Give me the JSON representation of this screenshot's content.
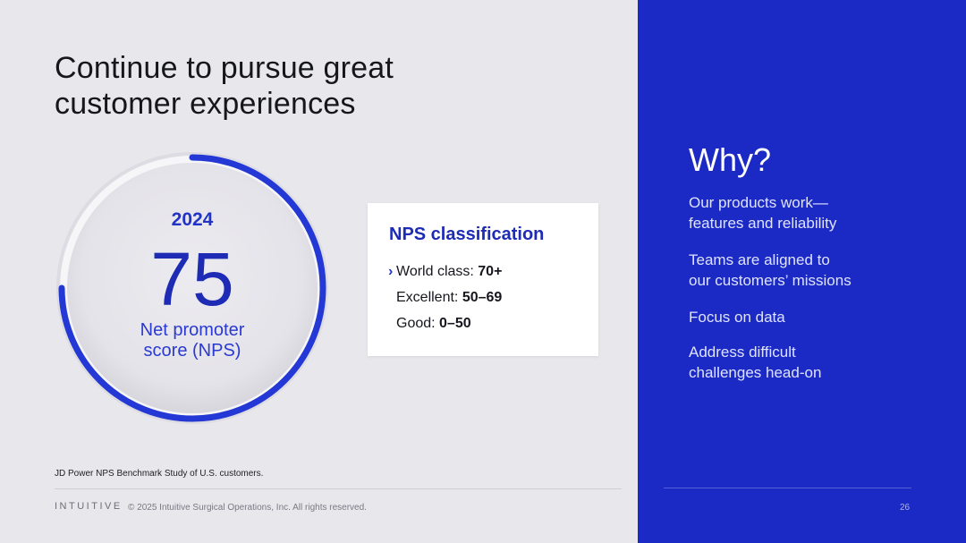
{
  "slide": {
    "title_line1": "Continue to pursue great",
    "title_line2": "customer experiences",
    "accent_color": "#1b2ac4",
    "background_color": "#e8e7ec"
  },
  "gauge": {
    "year": "2024",
    "value": "75",
    "label_line1": "Net promoter",
    "label_line2": "score (NPS)"
  },
  "nps_card": {
    "title": "NPS classification",
    "rows": [
      {
        "label": "World class: ",
        "value": "70+",
        "marker": "›"
      },
      {
        "label": "Excellent: ",
        "value": "50–69"
      },
      {
        "label": "Good: ",
        "value": "0–50"
      }
    ]
  },
  "why": {
    "title": "Why?",
    "items": [
      {
        "line1": "Our products work—",
        "line2": "features and reliability"
      },
      {
        "line1": "Teams are aligned to",
        "line2": "our customers’ missions"
      },
      {
        "line1": "Focus on data",
        "line2": ""
      },
      {
        "line1": "Address difficult",
        "line2": "challenges head-on"
      }
    ]
  },
  "footer": {
    "footnote": "JD Power NPS Benchmark Study of U.S. customers.",
    "logo": "INTUITIVE",
    "copyright": "© 2025 Intuitive Surgical Operations, Inc. All rights reserved.",
    "page_number": "26"
  }
}
